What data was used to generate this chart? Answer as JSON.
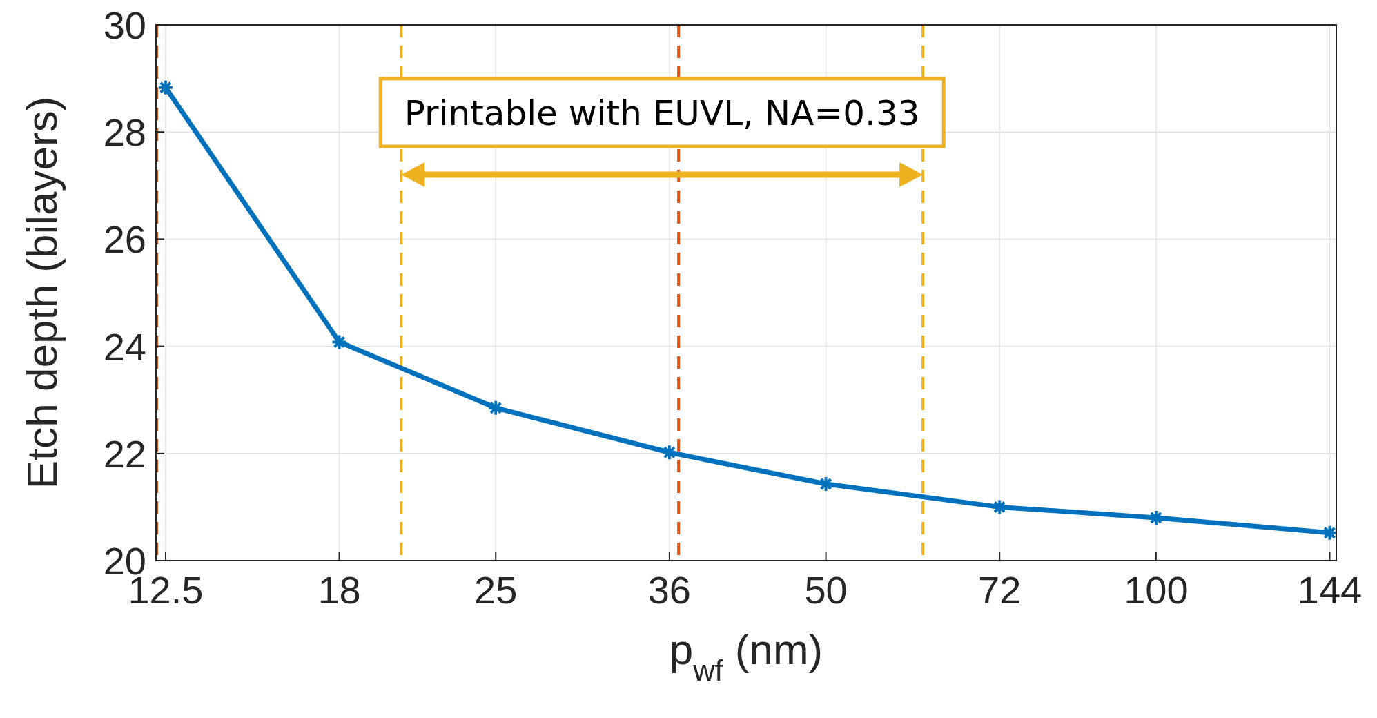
{
  "chart_data": {
    "type": "line",
    "xlabel": "p$_{wf}$ (nm)",
    "ylabel": "Etch depth (bilayers)",
    "log": "x",
    "x": [
      12.5,
      18,
      25,
      36,
      50,
      72,
      100,
      144
    ],
    "series": [
      {
        "color": "#0072bd",
        "values": [
          28.83,
          24.08,
          22.85,
          22.02,
          21.43,
          21.0,
          20.8,
          20.52
        ]
      }
    ],
    "xlim": [
      12.25,
      146
    ],
    "xticks": [
      12.5,
      18,
      25,
      36,
      50,
      72,
      100,
      144
    ],
    "ylim": [
      20,
      30
    ],
    "yticks": [
      20,
      22,
      24,
      26,
      28,
      30
    ],
    "grid": true,
    "marker": "cross",
    "line_style": "solid",
    "ref_lines": [
      {
        "axis": "x",
        "value": 12.27,
        "color": "#d95319",
        "line_style": "dashed"
      },
      {
        "axis": "x",
        "value": 36.7,
        "color": "#d95319",
        "line_style": "dashed"
      },
      {
        "axis": "x",
        "value": 20.5,
        "color": "#edb120",
        "line_style": "dashed"
      },
      {
        "axis": "x",
        "value": 61.3,
        "color": "#edb120",
        "line_style": "dashed"
      }
    ],
    "annotations": [
      "Printable with EUVL, NA=0.33"
    ]
  }
}
